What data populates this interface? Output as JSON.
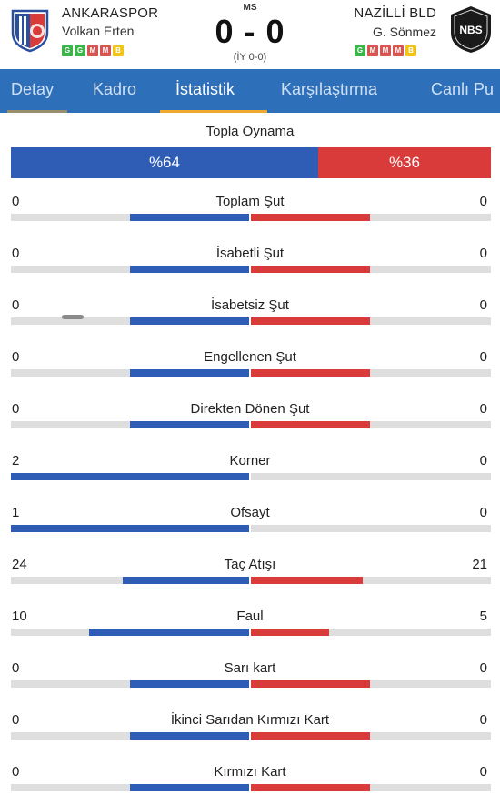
{
  "match": {
    "status": "MS",
    "score": "0 - 0",
    "halftime": "(İY 0-0)"
  },
  "home": {
    "name": "ANKARASPOR",
    "coach": "Volkan Erten",
    "form": [
      "G",
      "G",
      "M",
      "M",
      "B"
    ],
    "color": "#2f5db5",
    "logo": "ankaraspor-crest-icon"
  },
  "away": {
    "name": "NAZİLLİ BLD",
    "coach": "G. Sönmez",
    "form": [
      "G",
      "M",
      "M",
      "M",
      "B"
    ],
    "color": "#d93b3b",
    "logo": "nazilli-crest-icon",
    "logo_text": "NBS"
  },
  "tabs": [
    {
      "label": "Detay",
      "active": false
    },
    {
      "label": "Kadro",
      "active": false
    },
    {
      "label": "İstatistik",
      "active": true
    },
    {
      "label": "Karşılaştırma",
      "active": false
    },
    {
      "label": "Canlı Pu",
      "active": false
    }
  ],
  "possession": {
    "title": "Topla Oynama",
    "home": 64,
    "away": 36,
    "home_label": "%64",
    "away_label": "%36"
  },
  "stats": [
    {
      "label": "Toplam Şut",
      "home": "0",
      "away": "0",
      "home_fill": 0.5,
      "away_fill": 0.5
    },
    {
      "label": "İsabetli Şut",
      "home": "0",
      "away": "0",
      "home_fill": 0.5,
      "away_fill": 0.5
    },
    {
      "label": "İsabetsiz Şut",
      "home": "0",
      "away": "0",
      "home_fill": 0.5,
      "away_fill": 0.5
    },
    {
      "label": "Engellenen Şut",
      "home": "0",
      "away": "0",
      "home_fill": 0.5,
      "away_fill": 0.5
    },
    {
      "label": "Direkten Dönen Şut",
      "home": "0",
      "away": "0",
      "home_fill": 0.5,
      "away_fill": 0.5
    },
    {
      "label": "Korner",
      "home": "2",
      "away": "0",
      "home_fill": 1.0,
      "away_fill": 0.0
    },
    {
      "label": "Ofsayt",
      "home": "1",
      "away": "0",
      "home_fill": 1.0,
      "away_fill": 0.0
    },
    {
      "label": "Taç Atışı",
      "home": "24",
      "away": "21",
      "home_fill": 0.53,
      "away_fill": 0.47
    },
    {
      "label": "Faul",
      "home": "10",
      "away": "5",
      "home_fill": 0.67,
      "away_fill": 0.33
    },
    {
      "label": "Sarı kart",
      "home": "0",
      "away": "0",
      "home_fill": 0.5,
      "away_fill": 0.5
    },
    {
      "label": "İkinci Sarıdan Kırmızı Kart",
      "home": "0",
      "away": "0",
      "home_fill": 0.5,
      "away_fill": 0.5
    },
    {
      "label": "Kırmızı Kart",
      "home": "0",
      "away": "0",
      "home_fill": 0.5,
      "away_fill": 0.5
    }
  ]
}
